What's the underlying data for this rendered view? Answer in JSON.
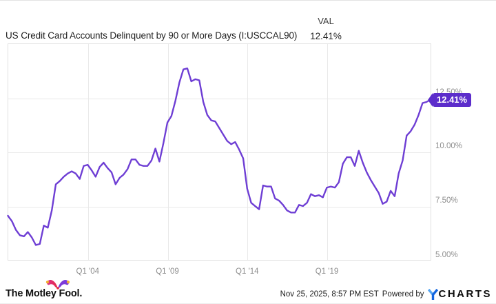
{
  "header": {
    "title": "US Credit Card Accounts Delinquent by 90 or More Days (I:USCCAL90)",
    "val_label": "VAL",
    "val_value": "12.41%"
  },
  "chart_data": {
    "type": "line",
    "title": "US Credit Card Accounts Delinquent by 90 or More Days",
    "series_id": "I:USCCAL90",
    "unit": "percent",
    "frequency": "quarterly",
    "x_start": "Q1 1999",
    "x_end": "Q3 2025",
    "values": [
      7.05,
      6.8,
      6.4,
      6.15,
      6.1,
      6.3,
      6.05,
      5.7,
      5.75,
      6.6,
      6.5,
      7.3,
      8.5,
      8.65,
      8.85,
      9.0,
      9.1,
      9.0,
      8.75,
      9.35,
      9.4,
      9.15,
      8.85,
      9.3,
      9.5,
      9.25,
      9.05,
      8.5,
      8.8,
      8.95,
      9.2,
      9.65,
      9.65,
      9.4,
      9.35,
      9.35,
      9.6,
      10.15,
      9.55,
      10.4,
      11.35,
      11.65,
      12.35,
      13.2,
      13.8,
      13.85,
      13.25,
      13.35,
      13.3,
      12.3,
      11.7,
      11.45,
      11.4,
      11.1,
      10.8,
      10.5,
      10.35,
      10.45,
      10.1,
      9.7,
      8.3,
      7.65,
      7.5,
      7.35,
      8.45,
      8.4,
      8.4,
      7.85,
      7.75,
      7.55,
      7.3,
      7.2,
      7.2,
      7.55,
      7.5,
      7.65,
      8.05,
      7.95,
      8.0,
      7.9,
      8.35,
      8.4,
      8.35,
      8.6,
      9.45,
      9.75,
      9.75,
      9.35,
      10.05,
      9.5,
      9.05,
      8.7,
      8.4,
      8.1,
      7.6,
      7.7,
      8.2,
      7.95,
      9.0,
      9.6,
      10.75,
      10.95,
      11.25,
      11.7,
      12.25,
      12.3,
      12.41
    ],
    "last_value": 12.41,
    "last_value_label": "12.41%",
    "ylim": [
      5,
      15
    ],
    "y_ticks": [
      {
        "value": 12.5,
        "label": "12.50%"
      },
      {
        "value": 10.0,
        "label": "10.00%"
      },
      {
        "value": 7.5,
        "label": "7.50%"
      },
      {
        "value": 5.0,
        "label": "5.00%"
      }
    ],
    "y_grid_values": [
      12.5,
      10.0,
      7.5
    ],
    "x_ticks": [
      {
        "index": 20,
        "label": "Q1 '04"
      },
      {
        "index": 40,
        "label": "Q1 '09"
      },
      {
        "index": 60,
        "label": "Q1 '14"
      },
      {
        "index": 80,
        "label": "Q1 '19"
      }
    ],
    "grid": true,
    "legend_position": "none",
    "line_color": "#6e3ed4",
    "badge_color": "#5c2dcb"
  },
  "footer": {
    "brand": "The Motley Fool.",
    "timestamp": "Nov 25, 2025, 8:57 PM EST",
    "powered_by": "Powered by",
    "ycharts_wordmark": "CHARTS"
  },
  "colors": {
    "line": "#6e3ed4",
    "badge_bg": "#5c2dcb",
    "grid": "#e9e9e9",
    "axis_label": "#8e8e8e",
    "ycharts_blue_dark": "#1566df",
    "ycharts_blue_light": "#58a6f2",
    "fool_red": "#e8283f",
    "fool_magenta": "#d te"
  }
}
